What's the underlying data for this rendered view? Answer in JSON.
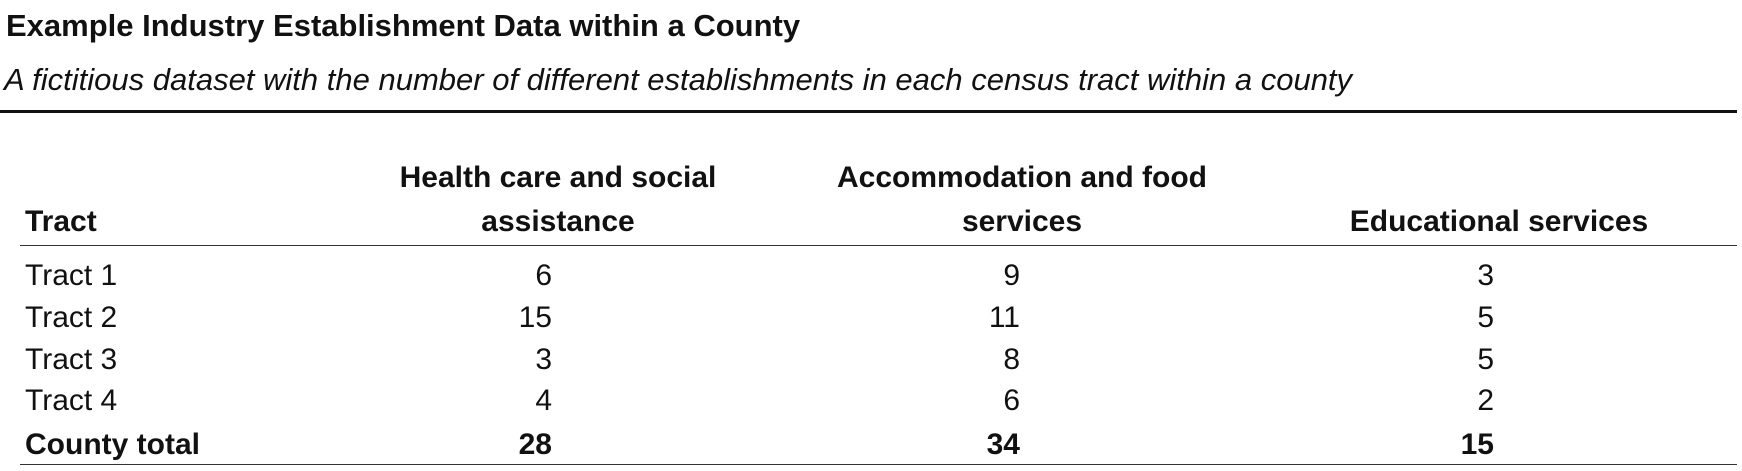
{
  "header": {
    "title": "Example Industry Establishment Data within a County",
    "subtitle": "A fictitious dataset with the number of different establishments in each census tract within a county"
  },
  "table": {
    "columns": [
      "Tract",
      "Health care and social assistance",
      "Accommodation and food services",
      "Educational services"
    ],
    "rows": [
      [
        "Tract 1",
        6,
        9,
        3
      ],
      [
        "Tract 2",
        15,
        11,
        5
      ],
      [
        "Tract 3",
        3,
        8,
        5
      ],
      [
        "Tract 4",
        4,
        6,
        2
      ]
    ],
    "total": [
      "County total",
      28,
      34,
      15
    ]
  }
}
